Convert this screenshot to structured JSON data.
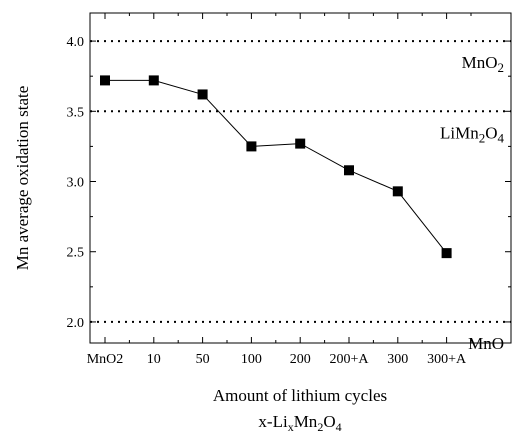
{
  "chart_data": {
    "type": "line",
    "title": "",
    "xlabel": "Amount of lithium cycles",
    "xlabel_line2": {
      "base": "x-Li",
      "sub1": "x",
      "mid": "Mn",
      "sub2": "2",
      "end": "O",
      "sub3": "4"
    },
    "ylabel": "Mn average oxidation state",
    "categories": [
      "MnO2",
      "10",
      "50",
      "100",
      "200",
      "200+A",
      "300",
      "300+A"
    ],
    "values": [
      3.72,
      3.72,
      3.62,
      3.25,
      3.27,
      3.08,
      2.93,
      2.49
    ],
    "ylim": [
      1.85,
      4.2
    ],
    "yticks": [
      "2.0",
      "2.5",
      "3.0",
      "3.5",
      "4.0"
    ],
    "grid": false,
    "marker": "square",
    "reference_lines": [
      {
        "y": 4.0,
        "label": "MnO",
        "label_sub": "2",
        "label_tail": ""
      },
      {
        "y": 3.5,
        "label": "LiMn",
        "label_sub": "2",
        "label_tail": "O",
        "label_sub2": "4"
      },
      {
        "y": 2.0,
        "label": "MnO",
        "label_sub": "",
        "label_tail": ""
      }
    ],
    "colors": {
      "line": "#000000",
      "marker": "#000000",
      "reference": "#000000"
    }
  }
}
